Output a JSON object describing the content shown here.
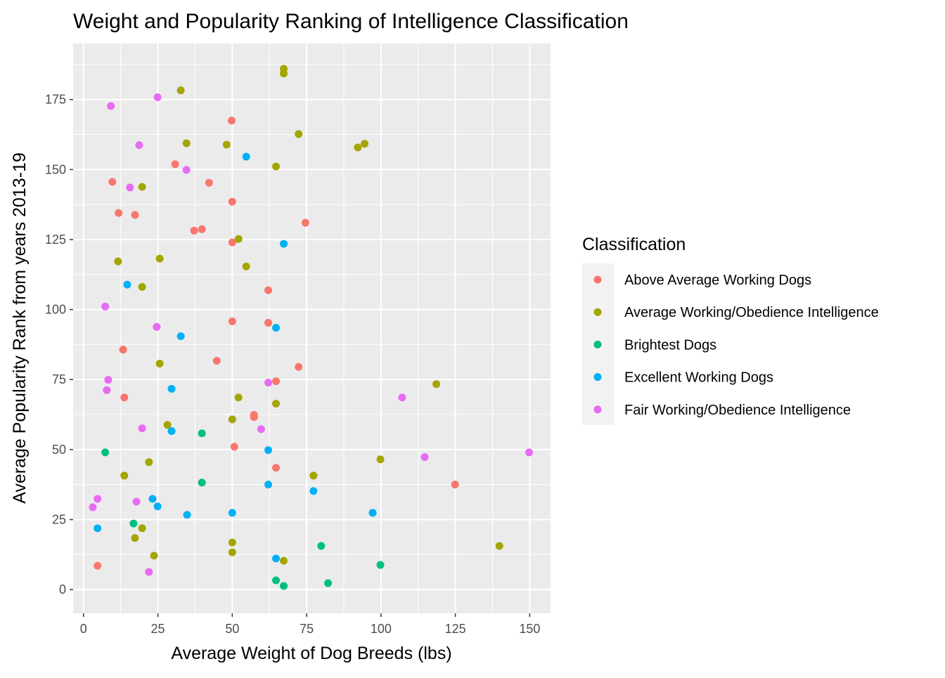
{
  "chart_data": {
    "type": "scatter",
    "title": "Weight and Popularity Ranking of Intelligence Classification",
    "xlabel": "Average Weight of Dog Breeds (lbs)",
    "ylabel": "Average Popularity Rank from years 2013-19",
    "xlim": [
      -3.5,
      157
    ],
    "ylim": [
      -8.5,
      195
    ],
    "xticks": [
      0,
      25,
      50,
      75,
      100,
      125,
      150
    ],
    "yticks": [
      0,
      25,
      50,
      75,
      100,
      125,
      150,
      175
    ],
    "grid": true,
    "legend": {
      "title": "Classification",
      "placement": "right"
    },
    "series": [
      {
        "name": "Above Average Working Dogs",
        "color": "#F8766D",
        "points": [
          [
            49.8,
            167.5
          ],
          [
            30.8,
            151.9
          ],
          [
            9.7,
            145.6
          ],
          [
            42.2,
            145.3
          ],
          [
            50,
            138.5
          ],
          [
            11.8,
            134.5
          ],
          [
            17.3,
            133.8
          ],
          [
            74.6,
            131
          ],
          [
            37.2,
            128.2
          ],
          [
            39.8,
            128.7
          ],
          [
            50,
            124
          ],
          [
            62.1,
            106.9
          ],
          [
            50,
            95.8
          ],
          [
            62.1,
            95.3
          ],
          [
            13.3,
            85.7
          ],
          [
            44.8,
            81.7
          ],
          [
            72.3,
            79.5
          ],
          [
            64.7,
            74.4
          ],
          [
            13.7,
            68.6
          ],
          [
            57.3,
            62.4
          ],
          [
            57.3,
            61.6
          ],
          [
            50.7,
            51
          ],
          [
            64.7,
            43.5
          ],
          [
            124.9,
            37.5
          ],
          [
            4.7,
            8.5
          ]
        ]
      },
      {
        "name": "Average Working/Obedience Intelligence",
        "color": "#A3A500",
        "points": [
          [
            67.3,
            186
          ],
          [
            67.3,
            184.3
          ],
          [
            32.7,
            178.3
          ],
          [
            72.3,
            162.7
          ],
          [
            34.6,
            159.4
          ],
          [
            48.1,
            158.9
          ],
          [
            94.5,
            159.2
          ],
          [
            92.2,
            157.9
          ],
          [
            64.7,
            151.1
          ],
          [
            19.7,
            143.8
          ],
          [
            52.1,
            125.2
          ],
          [
            11.6,
            117.2
          ],
          [
            25.6,
            118.2
          ],
          [
            54.7,
            115.4
          ],
          [
            19.7,
            108.1
          ],
          [
            25.6,
            80.7
          ],
          [
            118.6,
            73.4
          ],
          [
            52.1,
            68.6
          ],
          [
            64.7,
            66.4
          ],
          [
            50,
            60.8
          ],
          [
            28.2,
            58.8
          ],
          [
            99.8,
            46.5
          ],
          [
            22,
            45.5
          ],
          [
            13.7,
            40.7
          ],
          [
            77.3,
            40.7
          ],
          [
            19.7,
            21.9
          ],
          [
            17.3,
            18.4
          ],
          [
            50,
            16.8
          ],
          [
            139.8,
            15.6
          ],
          [
            50,
            13.3
          ],
          [
            23.7,
            12.1
          ],
          [
            67.3,
            10.3
          ]
        ]
      },
      {
        "name": "Brightest Dogs",
        "color": "#00BF7D",
        "points": [
          [
            39.8,
            55.8
          ],
          [
            7.3,
            49
          ],
          [
            39.8,
            38.2
          ],
          [
            16.8,
            23.6
          ],
          [
            79.9,
            15.6
          ],
          [
            99.8,
            8.8
          ],
          [
            64.7,
            3.3
          ],
          [
            67.3,
            1.3
          ],
          [
            82.2,
            2.3
          ]
        ]
      },
      {
        "name": "Excellent Working Dogs",
        "color": "#00B0F6",
        "points": [
          [
            54.7,
            154.6
          ],
          [
            67.3,
            123.5
          ],
          [
            14.7,
            108.9
          ],
          [
            64.7,
            93.5
          ],
          [
            32.7,
            90.5
          ],
          [
            29.6,
            71.7
          ],
          [
            29.6,
            56.6
          ],
          [
            62.1,
            49.8
          ],
          [
            62.1,
            37.5
          ],
          [
            77.3,
            35.2
          ],
          [
            23.2,
            32.4
          ],
          [
            24.9,
            29.7
          ],
          [
            34.8,
            26.7
          ],
          [
            50,
            27.4
          ],
          [
            97.2,
            27.4
          ],
          [
            4.7,
            21.9
          ],
          [
            64.7,
            11.1
          ]
        ]
      },
      {
        "name": "Fair Working/Obedience Intelligence",
        "color": "#E76BF3",
        "points": [
          [
            9.2,
            172.7
          ],
          [
            24.9,
            175.8
          ],
          [
            18.7,
            158.7
          ],
          [
            34.6,
            149.9
          ],
          [
            15.6,
            143.6
          ],
          [
            7.3,
            101.1
          ],
          [
            24.6,
            93.8
          ],
          [
            8.3,
            74.9
          ],
          [
            7.8,
            71.2
          ],
          [
            62.1,
            73.9
          ],
          [
            107.1,
            68.6
          ],
          [
            19.7,
            57.6
          ],
          [
            59.7,
            57.3
          ],
          [
            114.7,
            47.3
          ],
          [
            149.8,
            49
          ],
          [
            4.7,
            32.4
          ],
          [
            17.8,
            31.4
          ],
          [
            3.1,
            29.4
          ],
          [
            22,
            6.3
          ]
        ]
      }
    ]
  }
}
